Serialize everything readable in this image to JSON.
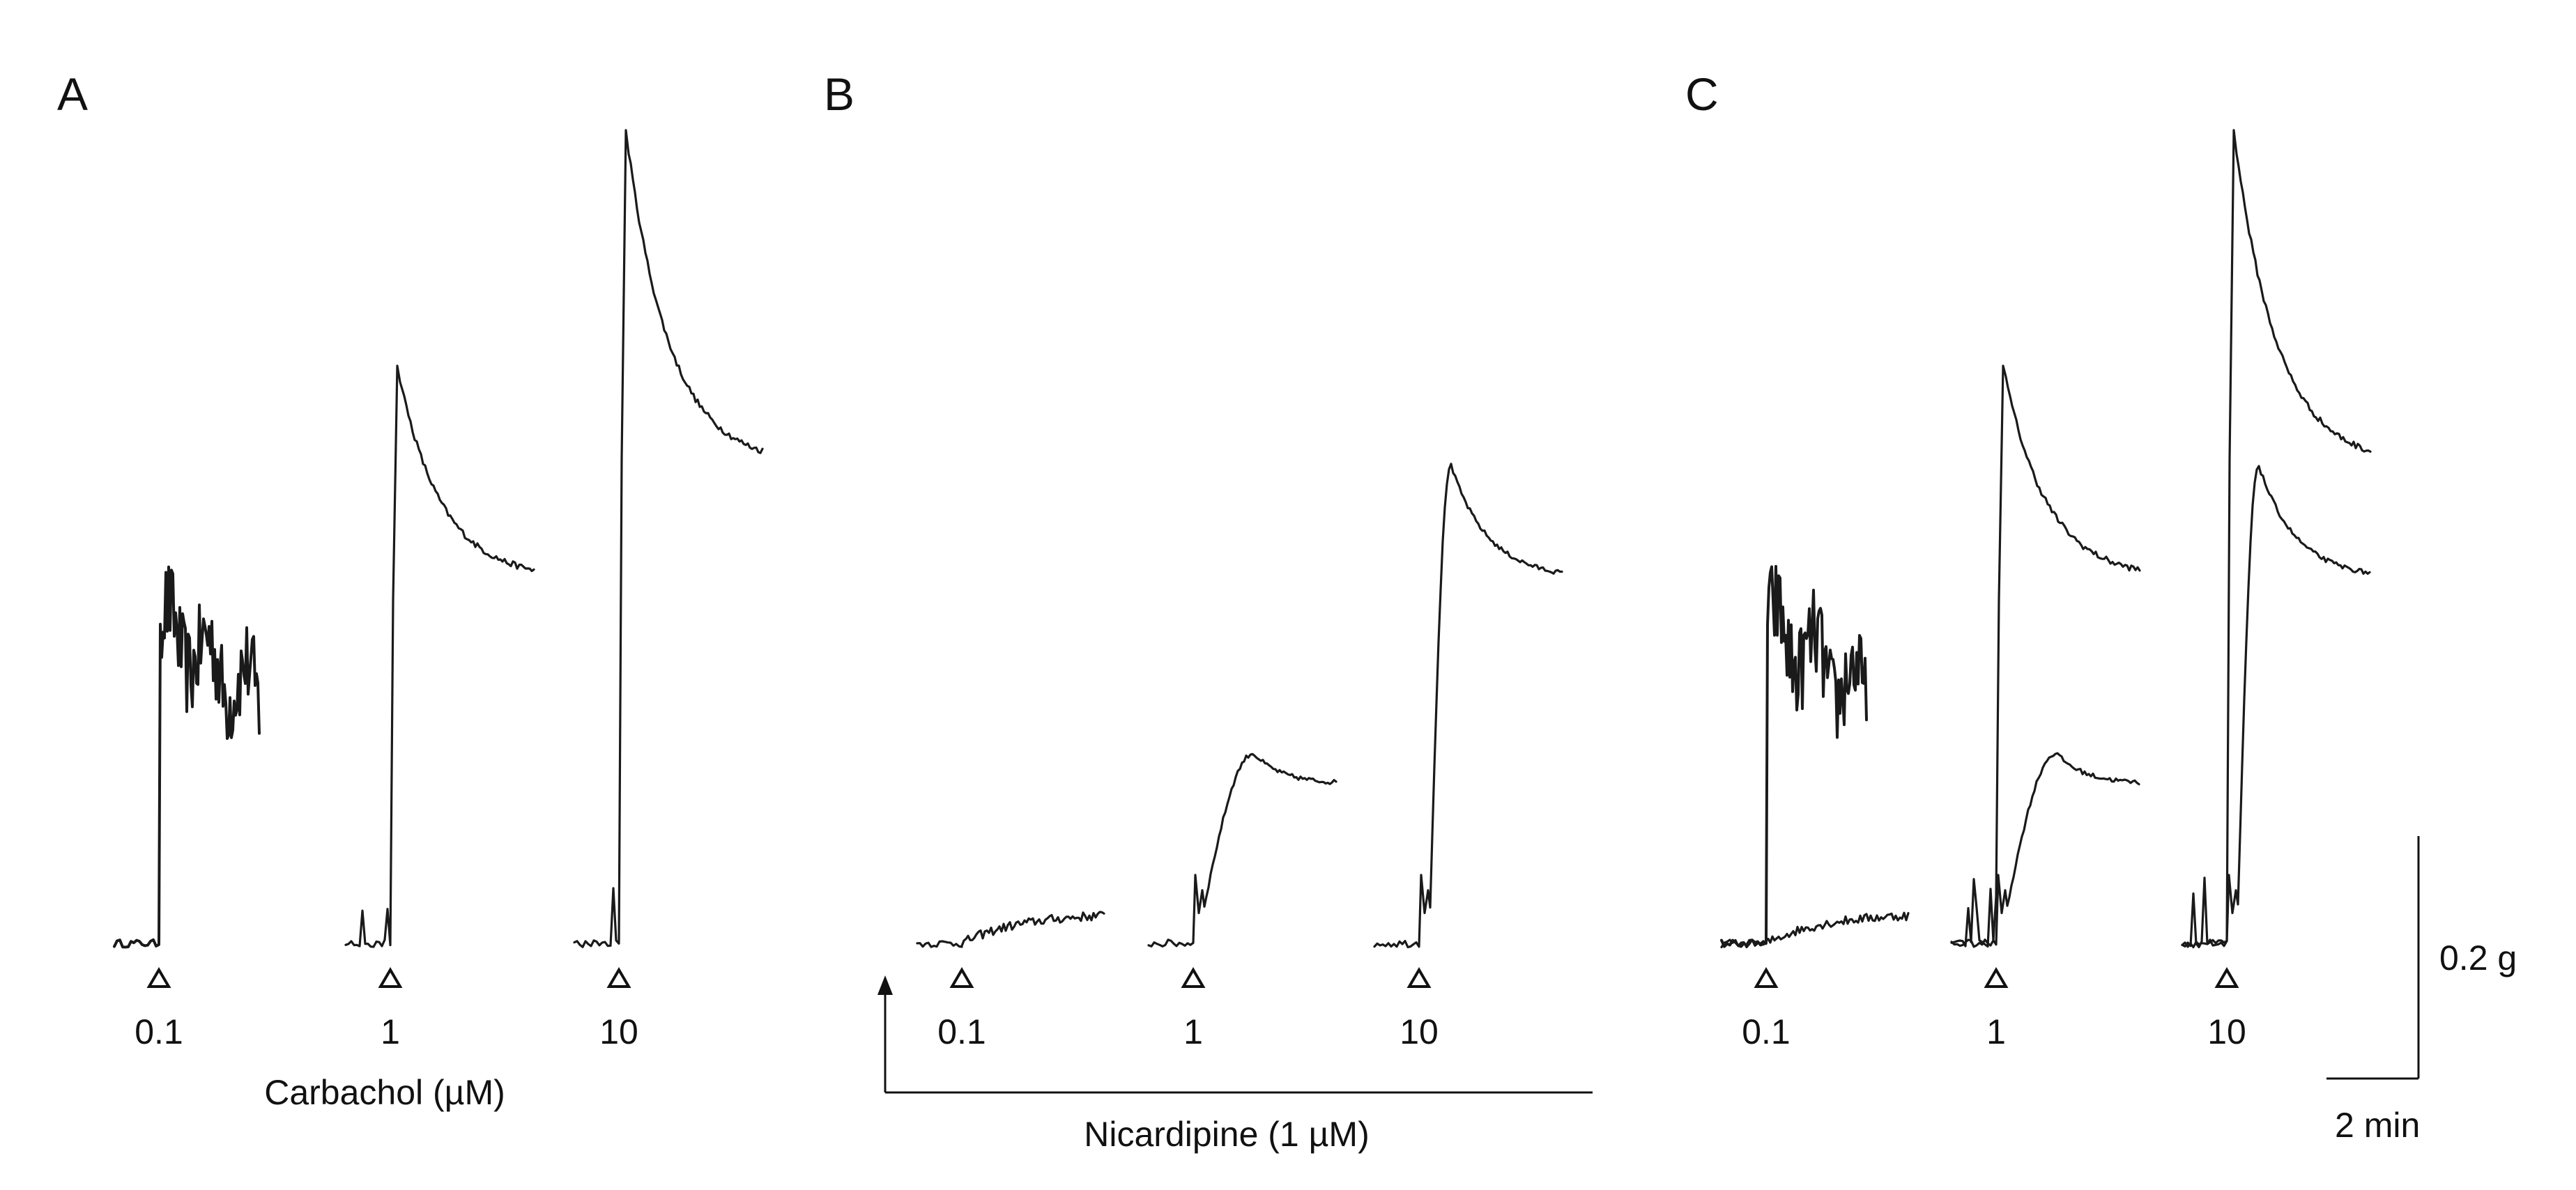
{
  "chart_data": {
    "type": "line",
    "units": {
      "force": "g",
      "time": "min"
    },
    "ylim": [
      0,
      1.1
    ],
    "panels": [
      {
        "letter": "A",
        "caption": "Carbachol (µM)",
        "doses": [
          {
            "label": "0.1",
            "series": [
              {
                "name": "",
                "style": "noisy-plateau",
                "baseline": 0.01,
                "peak": 0.43,
                "end": 0.25
              }
            ]
          },
          {
            "label": "1",
            "series": [
              {
                "name": "",
                "style": "peak-decay",
                "baseline": 0.01,
                "peak": 0.77,
                "end": 0.49
              }
            ]
          },
          {
            "label": "10",
            "series": [
              {
                "name": "",
                "style": "peak-decay",
                "baseline": 0.01,
                "peak": 1.08,
                "end": 0.64
              }
            ]
          }
        ]
      },
      {
        "letter": "B",
        "caption": "Nicardipine (1 µM)",
        "doses": [
          {
            "label": "0.1",
            "series": [
              {
                "name": "",
                "style": "slow-rise",
                "baseline": 0.01,
                "peak": 0.05,
                "end": 0.05
              }
            ]
          },
          {
            "label": "1",
            "series": [
              {
                "name": "",
                "style": "notched-rise",
                "baseline": 0.01,
                "peak": 0.26,
                "end": 0.22
              }
            ]
          },
          {
            "label": "10",
            "series": [
              {
                "name": "",
                "style": "notched-rise",
                "baseline": 0.01,
                "peak": 0.64,
                "end": 0.49
              }
            ]
          }
        ]
      },
      {
        "letter": "C",
        "caption": "",
        "doses": [
          {
            "label": "0.1",
            "series": [
              {
                "name": "",
                "style": "noisy-plateau",
                "baseline": 0.01,
                "peak": 0.43,
                "end": 0.25
              },
              {
                "name": "",
                "style": "slow-rise",
                "baseline": 0.01,
                "peak": 0.05,
                "end": 0.05
              }
            ]
          },
          {
            "label": "1",
            "series": [
              {
                "name": "",
                "style": "peak-decay",
                "baseline": 0.01,
                "peak": 0.77,
                "end": 0.49
              },
              {
                "name": "",
                "style": "notched-rise",
                "baseline": 0.01,
                "peak": 0.26,
                "end": 0.22
              }
            ]
          },
          {
            "label": "10",
            "series": [
              {
                "name": "",
                "style": "peak-decay",
                "baseline": 0.01,
                "peak": 1.08,
                "end": 0.64
              },
              {
                "name": "",
                "style": "notched-rise",
                "baseline": 0.01,
                "peak": 0.64,
                "end": 0.49
              }
            ]
          }
        ]
      }
    ],
    "scale_bar": {
      "force_label": "0.2 g",
      "time_label": "2 min",
      "force_value": 0.2,
      "time_value": 2
    },
    "colors": {
      "trace": "#1a1a1a",
      "text": "#111111",
      "background": "#ffffff"
    }
  }
}
